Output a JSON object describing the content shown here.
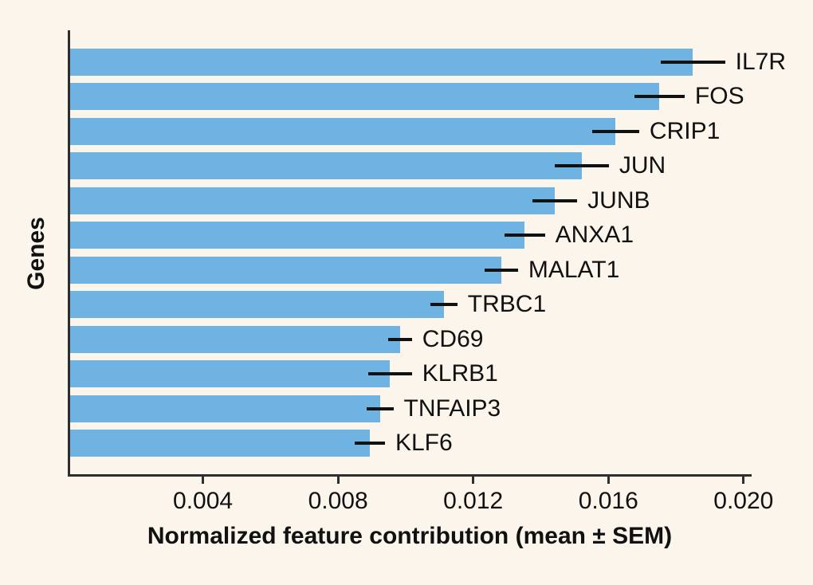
{
  "figure": {
    "background_color": "#fbf5ec",
    "bar_color": "#6fb3e3",
    "axis_color": "#2e2e2e",
    "error_bar_color": "#111111",
    "text_color": "#111111"
  },
  "chart_data": {
    "type": "bar",
    "orientation": "horizontal",
    "title": "",
    "xlabel": "Normalized feature contribution (mean ± SEM)",
    "ylabel": "Genes",
    "xlim": [
      0,
      0.02024
    ],
    "grid": false,
    "legend": false,
    "error_bars": "SEM, horizontal, no caps",
    "xticks": [
      {
        "value": 0.004,
        "label": "0.004"
      },
      {
        "value": 0.008,
        "label": "0.008"
      },
      {
        "value": 0.012,
        "label": "0.012"
      },
      {
        "value": 0.016,
        "label": "0.016"
      },
      {
        "value": 0.02,
        "label": "0.020"
      }
    ],
    "categories": [
      "IL7R",
      "FOS",
      "CRIP1",
      "JUN",
      "JUNB",
      "ANXA1",
      "MALAT1",
      "TRBC1",
      "CD69",
      "KLRB1",
      "TNFAIP3",
      "KLF6"
    ],
    "series": [
      {
        "name": "mean",
        "values": [
          0.0185,
          0.0175,
          0.0162,
          0.0152,
          0.0144,
          0.0135,
          0.0128,
          0.0111,
          0.0098,
          0.0095,
          0.0092,
          0.0089
        ]
      },
      {
        "name": "sem",
        "values": [
          0.00095,
          0.00075,
          0.0007,
          0.0008,
          0.00066,
          0.0006,
          0.0005,
          0.0004,
          0.00035,
          0.00065,
          0.0004,
          0.00045
        ]
      }
    ]
  }
}
